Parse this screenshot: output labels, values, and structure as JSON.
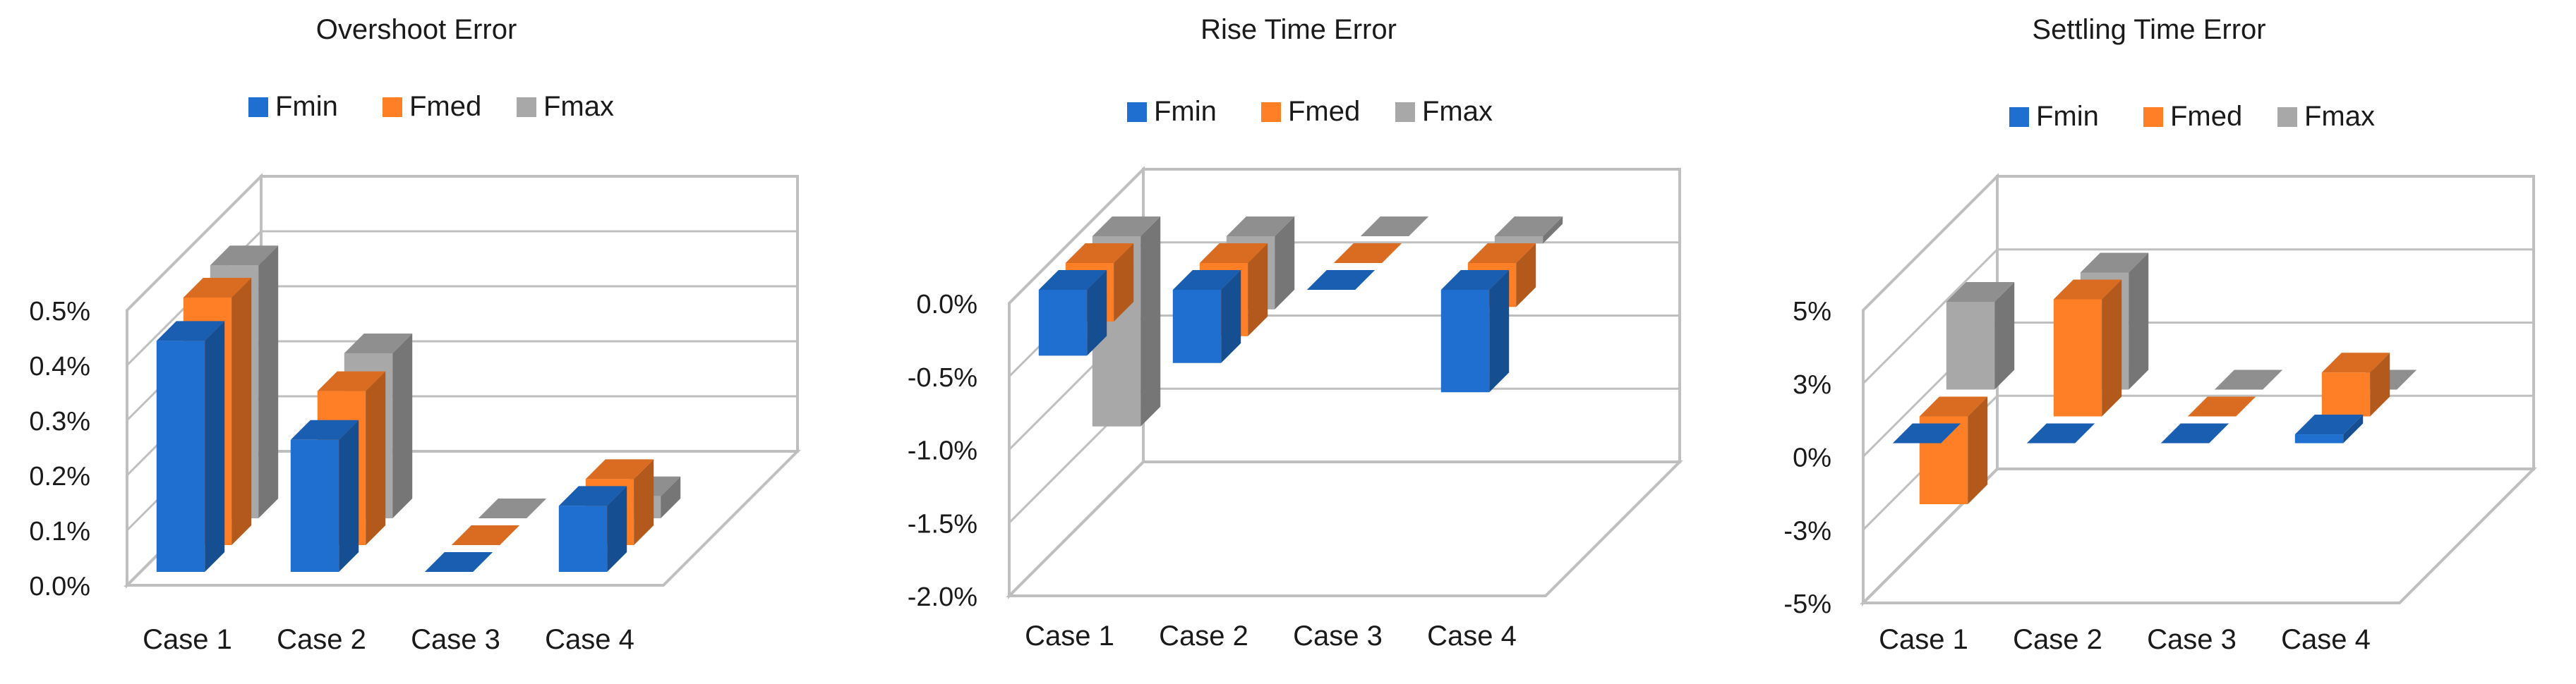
{
  "colors": {
    "Fmin": "#1f6fd1",
    "Fmed": "#ff7f27",
    "Fmax": "#a8a8a8",
    "axis": "#bfbfbf",
    "text": "#1a1a1a"
  },
  "chart_data": [
    {
      "type": "bar",
      "title": "Overshoot Error",
      "categories": [
        "Case 1",
        "Case 2",
        "Case 3",
        "Case 4"
      ],
      "series": [
        {
          "name": "Fmin",
          "values": [
            0.42,
            0.24,
            0.0,
            0.12
          ]
        },
        {
          "name": "Fmed",
          "values": [
            0.45,
            0.28,
            0.0,
            0.12
          ]
        },
        {
          "name": "Fmax",
          "values": [
            0.46,
            0.3,
            0.0,
            0.04
          ]
        }
      ],
      "yticks": [
        "0.0%",
        "0.1%",
        "0.2%",
        "0.3%",
        "0.4%",
        "0.5%"
      ],
      "ylim": [
        0,
        0.5
      ],
      "legend": "top",
      "grid": true
    },
    {
      "type": "bar",
      "title": "Rise Time Error",
      "categories": [
        "Case 1",
        "Case 2",
        "Case 3",
        "Case 4"
      ],
      "series": [
        {
          "name": "Fmin",
          "values": [
            -0.45,
            -0.5,
            0.0,
            -0.7
          ]
        },
        {
          "name": "Fmed",
          "values": [
            -0.4,
            -0.5,
            0.0,
            -0.3
          ]
        },
        {
          "name": "Fmax",
          "values": [
            -1.3,
            -0.5,
            0.0,
            -0.05
          ]
        }
      ],
      "yticks": [
        "-2.0%",
        "-1.5%",
        "-1.0%",
        "-0.5%",
        "0.0%"
      ],
      "ylim": [
        -2.0,
        0.0
      ],
      "legend": "top",
      "grid": true
    },
    {
      "type": "bar",
      "title": "Settling Time Error",
      "categories": [
        "Case 1",
        "Case 2",
        "Case 3",
        "Case 4"
      ],
      "series": [
        {
          "name": "Fmin",
          "values": [
            0.0,
            0.0,
            0.0,
            0.3
          ]
        },
        {
          "name": "Fmed",
          "values": [
            -3.0,
            4.0,
            0.0,
            1.5
          ]
        },
        {
          "name": "Fmax",
          "values": [
            3.0,
            4.0,
            0.0,
            0.0
          ]
        }
      ],
      "yticks": [
        "-5%",
        "-3%",
        "0%",
        "3%",
        "5%"
      ],
      "ylim": [
        -5,
        5
      ],
      "legend": "top",
      "grid": true
    }
  ]
}
